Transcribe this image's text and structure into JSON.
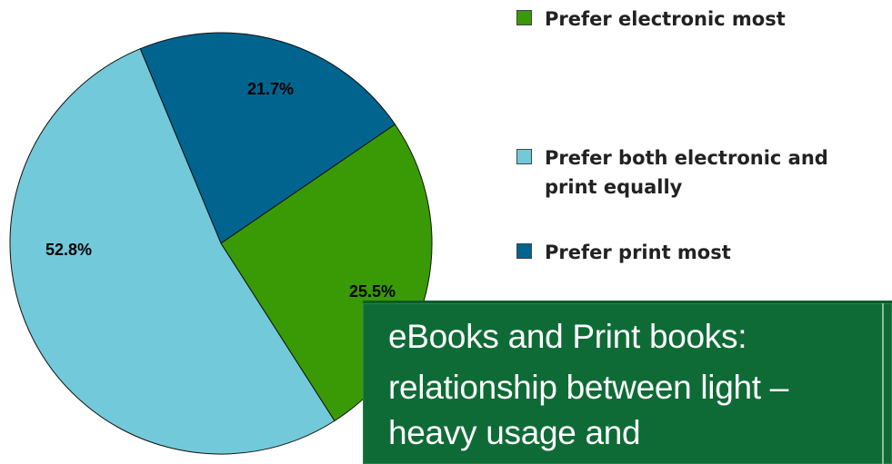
{
  "chart_data": {
    "type": "pie",
    "slices": [
      {
        "label": "Prefer print most",
        "value": 21.7,
        "display": "21.7%",
        "color": "#00648f"
      },
      {
        "label": "Prefer electronic most",
        "value": 25.5,
        "display": "25.5%",
        "color": "#3a9a05"
      },
      {
        "label": "Prefer both electronic and print equally",
        "value": 52.8,
        "display": "52.8%",
        "color": "#72c9da"
      }
    ],
    "legend": {
      "placement": "right",
      "entries": [
        {
          "label": "Prefer electronic most",
          "color": "#3a9a05"
        },
        {
          "label": "Prefer both electronic and print equally",
          "color": "#72c9da"
        },
        {
          "label": "Prefer print most",
          "color": "#00648f"
        }
      ]
    }
  },
  "title_overlay": {
    "lines": [
      "eBooks and Print books:",
      "relationship between light –",
      "heavy usage and"
    ],
    "background": "#0f6b36"
  }
}
